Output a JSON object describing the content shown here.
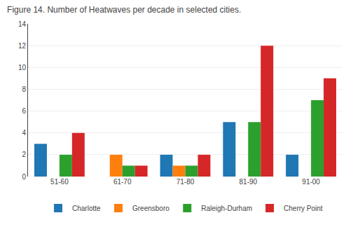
{
  "chart_data": {
    "type": "bar",
    "title": "Figure 14. Number of Heatwaves per decade in selected cities.",
    "categories": [
      "51-60",
      "61-70",
      "71-80",
      "81-90",
      "91-00"
    ],
    "series": [
      {
        "name": "Charlotte",
        "values": [
          3,
          0,
          2,
          5,
          2
        ]
      },
      {
        "name": "Greensboro",
        "values": [
          0,
          2,
          1,
          0,
          0
        ]
      },
      {
        "name": "Raleigh-Durham",
        "values": [
          2,
          1,
          1,
          5,
          7
        ]
      },
      {
        "name": "Cherry Point",
        "values": [
          4,
          1,
          2,
          12,
          9
        ]
      }
    ],
    "ylim": [
      0,
      14
    ],
    "yticks": [
      0,
      2,
      4,
      6,
      8,
      10,
      12,
      14
    ],
    "grid": true,
    "legend": "bottom"
  }
}
